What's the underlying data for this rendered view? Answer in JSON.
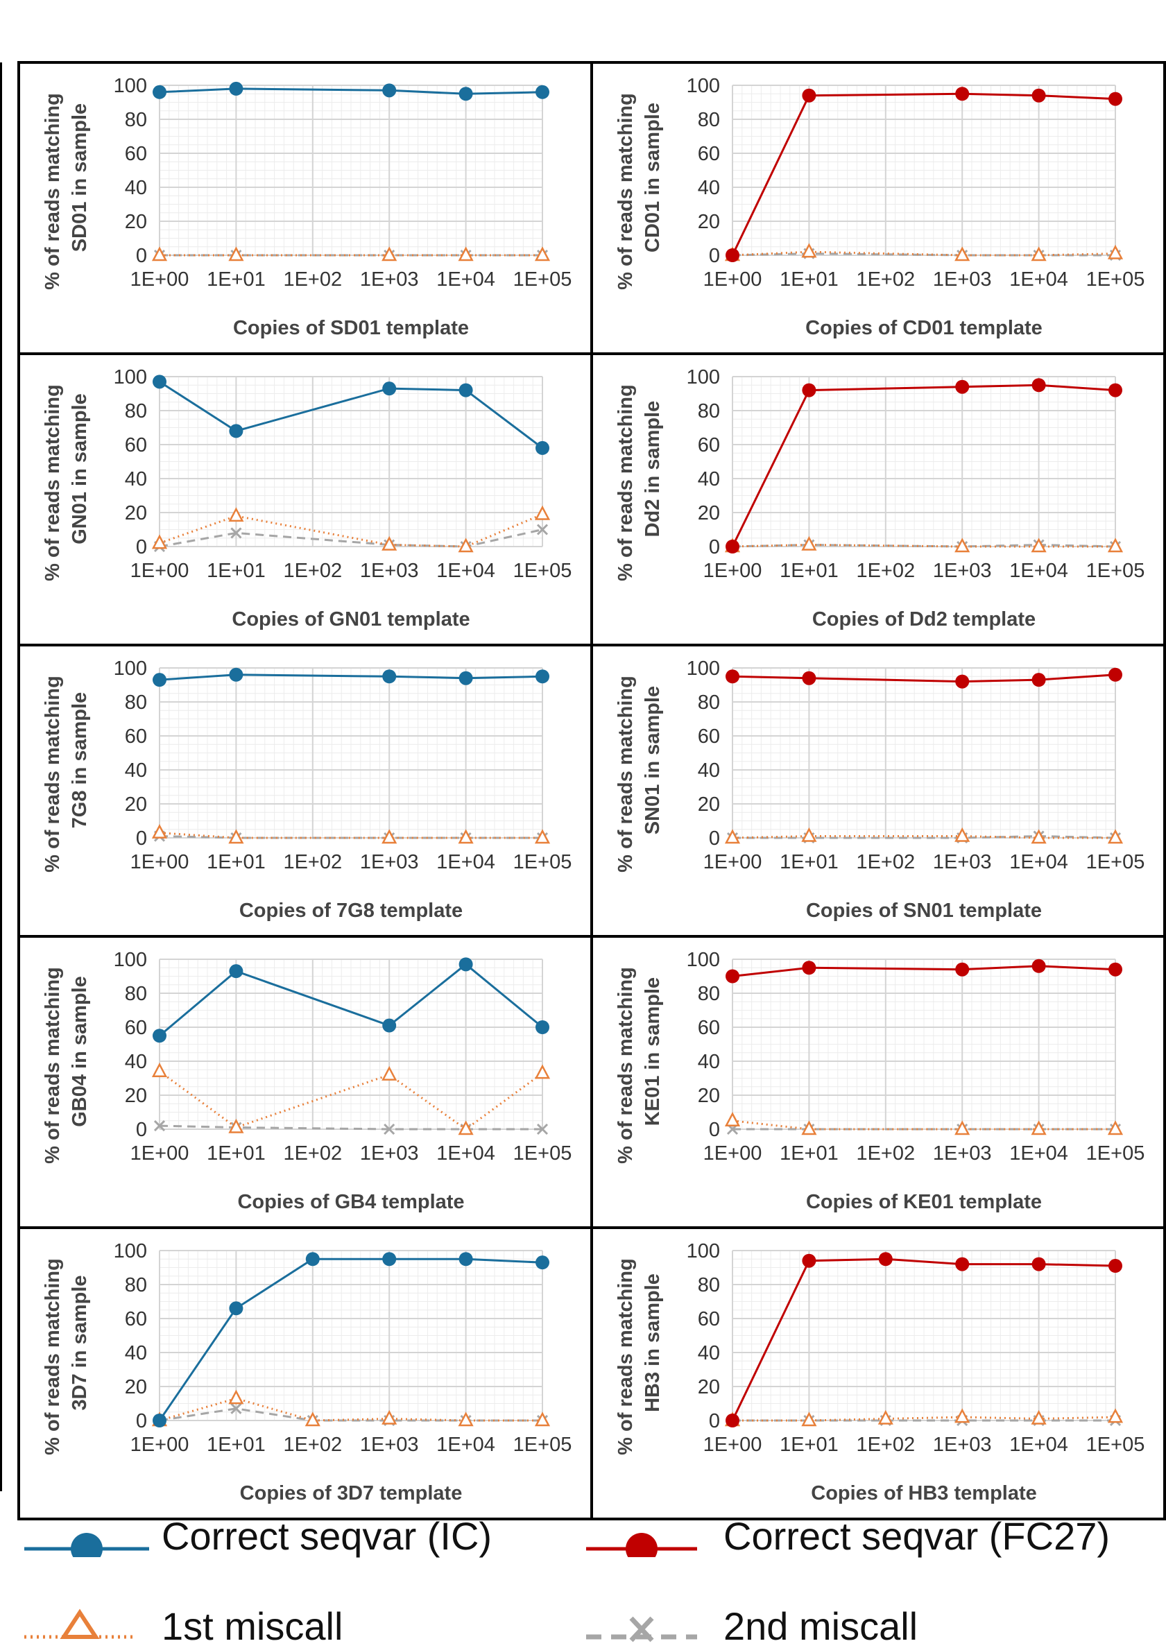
{
  "figure": {
    "x_ticks": [
      "1E+00",
      "1E+01",
      "1E+02",
      "1E+03",
      "1E+04",
      "1E+05"
    ],
    "y_ticks": [
      "0",
      "20",
      "40",
      "60",
      "80",
      "100"
    ]
  },
  "colors": {
    "ic": "#1a6e9c",
    "fc27": "#c00000",
    "miscall1": "#e8803a",
    "miscall2": "#a6a6a6",
    "grid_minor": "#ececec",
    "grid_major": "#d4d4d4",
    "frame": "#000000"
  },
  "chart_data": [
    {
      "id": "sd01",
      "type": "line",
      "col": 0,
      "row": 0,
      "ylabel_1": "% of  reads matching",
      "ylabel_2": "SD01 in sample",
      "xlabel": "Copies of SD01 template",
      "correct_color": "ic",
      "x_scale": "log10",
      "ylim": [
        0,
        100
      ],
      "series": [
        {
          "name": "Correct seqvar (IC)",
          "x": [
            0,
            1,
            3,
            4,
            5
          ],
          "y": [
            96,
            98,
            97,
            95,
            96
          ]
        },
        {
          "name": "1st miscall",
          "x": [
            0,
            1,
            3,
            4,
            5
          ],
          "y": [
            0,
            0,
            0,
            0,
            0
          ]
        },
        {
          "name": "2nd miscall",
          "x": [
            0,
            1,
            3,
            4,
            5
          ],
          "y": [
            0,
            0,
            0,
            0,
            0
          ]
        }
      ]
    },
    {
      "id": "cd01",
      "type": "line",
      "col": 1,
      "row": 0,
      "ylabel_1": "% of  reads matching",
      "ylabel_2": "CD01 in sample",
      "xlabel": "Copies of CD01 template",
      "correct_color": "fc27",
      "x_scale": "log10",
      "ylim": [
        0,
        100
      ],
      "series": [
        {
          "name": "Correct seqvar (FC27)",
          "x": [
            0,
            1,
            3,
            4,
            5
          ],
          "y": [
            0,
            94,
            95,
            94,
            92
          ]
        },
        {
          "name": "1st miscall",
          "x": [
            0,
            1,
            3,
            4,
            5
          ],
          "y": [
            0,
            2,
            0,
            0,
            1
          ]
        },
        {
          "name": "2nd miscall",
          "x": [
            0,
            1,
            3,
            4,
            5
          ],
          "y": [
            0,
            1,
            0,
            0,
            0
          ]
        }
      ]
    },
    {
      "id": "gn01",
      "type": "line",
      "col": 0,
      "row": 1,
      "ylabel_1": "% of  reads matching",
      "ylabel_2": "GN01 in sample",
      "xlabel": "Copies of GN01 template",
      "correct_color": "ic",
      "x_scale": "log10",
      "ylim": [
        0,
        100
      ],
      "series": [
        {
          "name": "Correct seqvar (IC)",
          "x": [
            0,
            1,
            3,
            4,
            5
          ],
          "y": [
            97,
            68,
            93,
            92,
            58
          ]
        },
        {
          "name": "1st miscall",
          "x": [
            0,
            1,
            3,
            4,
            5
          ],
          "y": [
            2,
            18,
            1,
            0,
            19
          ]
        },
        {
          "name": "2nd miscall",
          "x": [
            0,
            1,
            3,
            4,
            5
          ],
          "y": [
            0,
            8,
            1,
            0,
            10
          ]
        }
      ]
    },
    {
      "id": "dd2",
      "type": "line",
      "col": 1,
      "row": 1,
      "ylabel_1": "% of  reads matching",
      "ylabel_2": "Dd2 in sample",
      "xlabel": "Copies of Dd2 template",
      "correct_color": "fc27",
      "x_scale": "log10",
      "ylim": [
        0,
        100
      ],
      "series": [
        {
          "name": "Correct seqvar (FC27)",
          "x": [
            0,
            1,
            3,
            4,
            5
          ],
          "y": [
            0,
            92,
            94,
            95,
            92
          ]
        },
        {
          "name": "1st miscall",
          "x": [
            0,
            1,
            3,
            4,
            5
          ],
          "y": [
            0,
            1,
            0,
            0,
            0
          ]
        },
        {
          "name": "2nd miscall",
          "x": [
            0,
            1,
            3,
            4,
            5
          ],
          "y": [
            0,
            1,
            0,
            1,
            0
          ]
        }
      ]
    },
    {
      "id": "7g8",
      "type": "line",
      "col": 0,
      "row": 2,
      "ylabel_1": "% of  reads matching",
      "ylabel_2": "7G8 in sample",
      "xlabel": "Copies of 7G8 template",
      "correct_color": "ic",
      "x_scale": "log10",
      "ylim": [
        0,
        100
      ],
      "series": [
        {
          "name": "Correct seqvar (IC)",
          "x": [
            0,
            1,
            3,
            4,
            5
          ],
          "y": [
            93,
            96,
            95,
            94,
            95
          ]
        },
        {
          "name": "1st miscall",
          "x": [
            0,
            1,
            3,
            4,
            5
          ],
          "y": [
            3,
            0,
            0,
            0,
            0
          ]
        },
        {
          "name": "2nd miscall",
          "x": [
            0,
            1,
            3,
            4,
            5
          ],
          "y": [
            1,
            0,
            0,
            0,
            0
          ]
        }
      ]
    },
    {
      "id": "sn01",
      "type": "line",
      "col": 1,
      "row": 2,
      "ylabel_1": "% of  reads matching",
      "ylabel_2": "SN01 in sample",
      "xlabel": "Copies of SN01 template",
      "correct_color": "fc27",
      "x_scale": "log10",
      "ylim": [
        0,
        100
      ],
      "series": [
        {
          "name": "Correct seqvar (FC27)",
          "x": [
            0,
            1,
            3,
            4,
            5
          ],
          "y": [
            95,
            94,
            92,
            93,
            96
          ]
        },
        {
          "name": "1st miscall",
          "x": [
            0,
            1,
            3,
            4,
            5
          ],
          "y": [
            0,
            1,
            1,
            0,
            0
          ]
        },
        {
          "name": "2nd miscall",
          "x": [
            0,
            1,
            3,
            4,
            5
          ],
          "y": [
            0,
            0,
            0,
            1,
            0
          ]
        }
      ]
    },
    {
      "id": "gb04",
      "type": "line",
      "col": 0,
      "row": 3,
      "ylabel_1": "% of  reads matching",
      "ylabel_2": "GB04 in sample",
      "xlabel": "Copies of GB4 template",
      "correct_color": "ic",
      "x_scale": "log10",
      "ylim": [
        0,
        100
      ],
      "series": [
        {
          "name": "Correct seqvar (IC)",
          "x": [
            0,
            1,
            3,
            4,
            5
          ],
          "y": [
            55,
            93,
            61,
            97,
            60
          ]
        },
        {
          "name": "1st miscall",
          "x": [
            0,
            1,
            3,
            4,
            5
          ],
          "y": [
            34,
            1,
            32,
            0,
            33
          ]
        },
        {
          "name": "2nd miscall",
          "x": [
            0,
            1,
            3,
            4,
            5
          ],
          "y": [
            2,
            1,
            0,
            0,
            0
          ]
        }
      ]
    },
    {
      "id": "ke01",
      "type": "line",
      "col": 1,
      "row": 3,
      "ylabel_1": "% of  reads matching",
      "ylabel_2": "KE01 in sample",
      "xlabel": "Copies of KE01 template",
      "correct_color": "fc27",
      "x_scale": "log10",
      "ylim": [
        0,
        100
      ],
      "series": [
        {
          "name": "Correct seqvar (FC27)",
          "x": [
            0,
            1,
            3,
            4,
            5
          ],
          "y": [
            90,
            95,
            94,
            96,
            94
          ]
        },
        {
          "name": "1st miscall",
          "x": [
            0,
            1,
            3,
            4,
            5
          ],
          "y": [
            5,
            0,
            0,
            0,
            0
          ]
        },
        {
          "name": "2nd miscall",
          "x": [
            0,
            1,
            3,
            4,
            5
          ],
          "y": [
            0,
            0,
            0,
            0,
            0
          ]
        }
      ]
    },
    {
      "id": "3d7",
      "type": "line",
      "col": 0,
      "row": 4,
      "ylabel_1": "% of  reads matching",
      "ylabel_2": "3D7 in sample",
      "xlabel": "Copies of 3D7 template",
      "correct_color": "ic",
      "x_scale": "log10",
      "ylim": [
        0,
        100
      ],
      "series": [
        {
          "name": "Correct seqvar (IC)",
          "x": [
            0,
            1,
            2,
            3,
            4,
            5
          ],
          "y": [
            0,
            66,
            95,
            95,
            95,
            93
          ]
        },
        {
          "name": "1st miscall",
          "x": [
            0,
            1,
            2,
            3,
            4,
            5
          ],
          "y": [
            0,
            13,
            0,
            1,
            0,
            0
          ]
        },
        {
          "name": "2nd miscall",
          "x": [
            0,
            1,
            2,
            3,
            4,
            5
          ],
          "y": [
            0,
            7,
            0,
            0,
            0,
            0
          ]
        }
      ]
    },
    {
      "id": "hb3",
      "type": "line",
      "col": 1,
      "row": 4,
      "ylabel_1": "% of  reads matching",
      "ylabel_2": "HB3 in sample",
      "xlabel": "Copies of HB3 template",
      "correct_color": "fc27",
      "x_scale": "log10",
      "ylim": [
        0,
        100
      ],
      "series": [
        {
          "name": "Correct seqvar (FC27)",
          "x": [
            0,
            1,
            2,
            3,
            4,
            5
          ],
          "y": [
            0,
            94,
            95,
            92,
            92,
            91
          ]
        },
        {
          "name": "1st miscall",
          "x": [
            0,
            1,
            2,
            3,
            4,
            5
          ],
          "y": [
            0,
            0,
            1,
            2,
            1,
            2
          ]
        },
        {
          "name": "2nd miscall",
          "x": [
            0,
            1,
            2,
            3,
            4,
            5
          ],
          "y": [
            0,
            0,
            0,
            0,
            0,
            0
          ]
        }
      ]
    }
  ],
  "legend": {
    "ic": "Correct seqvar (IC)",
    "fc27": "Correct seqvar (FC27)",
    "miscall1": "1st miscall",
    "miscall2": "2nd miscall"
  }
}
